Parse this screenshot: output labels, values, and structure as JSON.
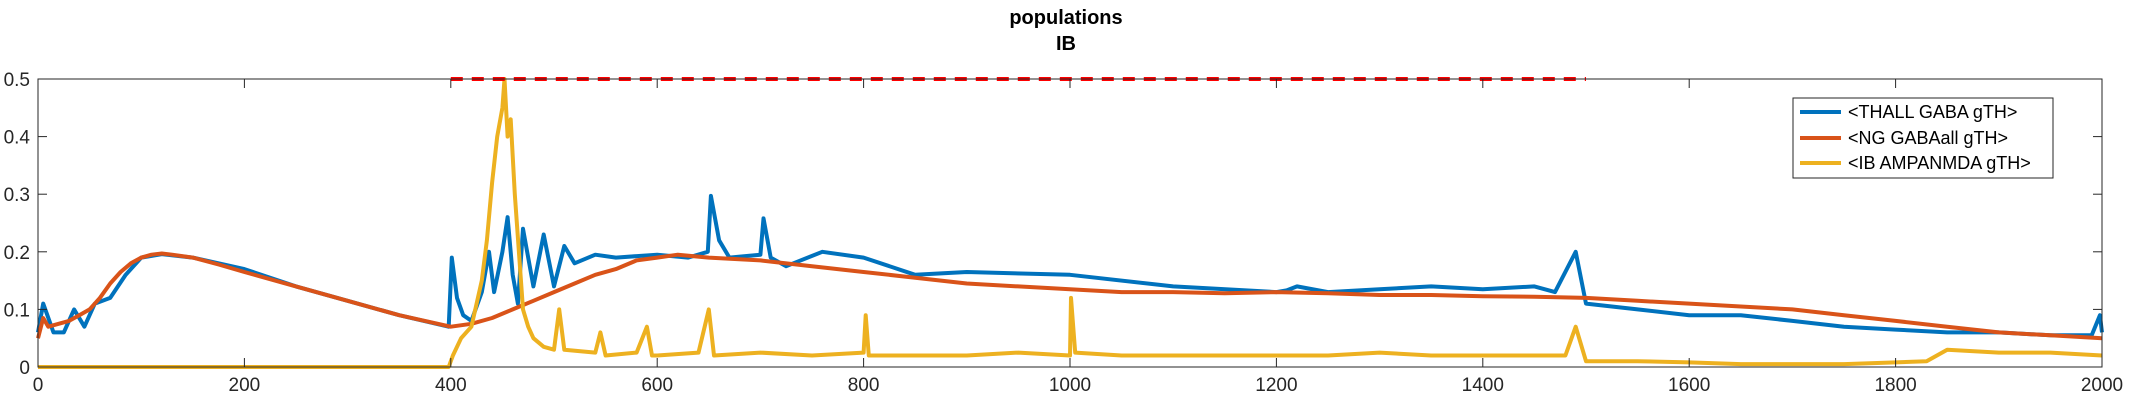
{
  "chart_data": {
    "type": "line",
    "title": "populations",
    "subtitle": "IB",
    "xlabel": "",
    "ylabel": "",
    "xlim": [
      0,
      2000
    ],
    "ylim": [
      0,
      0.5
    ],
    "xticks": [
      0,
      200,
      400,
      600,
      800,
      1000,
      1200,
      1400,
      1600,
      1800,
      2000
    ],
    "yticks": [
      0,
      0.1,
      0.2,
      0.3,
      0.4,
      0.5
    ],
    "ytick_labels": [
      "0",
      "0.1",
      "0.2",
      "0.3",
      "0.4",
      "0.5"
    ],
    "grid": false,
    "legend_position": "top-right",
    "series": [
      {
        "name": "<THALL GABA gTH>",
        "color": "#0072BD",
        "x": [
          0,
          5,
          15,
          25,
          35,
          45,
          55,
          70,
          85,
          100,
          120,
          150,
          200,
          250,
          300,
          350,
          398,
          401,
          406,
          412,
          420,
          430,
          437,
          442,
          450,
          455,
          460,
          465,
          470,
          480,
          490,
          500,
          510,
          520,
          540,
          560,
          600,
          630,
          649,
          652,
          660,
          670,
          700,
          703,
          710,
          725,
          760,
          800,
          850,
          900,
          1000,
          1100,
          1200,
          1210,
          1220,
          1250,
          1300,
          1350,
          1400,
          1450,
          1470,
          1490,
          1500,
          1550,
          1600,
          1650,
          1700,
          1750,
          1800,
          1850,
          1900,
          1950,
          1990,
          1998,
          2000
        ],
        "values": [
          0.06,
          0.11,
          0.06,
          0.06,
          0.1,
          0.07,
          0.11,
          0.12,
          0.16,
          0.19,
          0.196,
          0.19,
          0.17,
          0.14,
          0.115,
          0.09,
          0.07,
          0.19,
          0.12,
          0.09,
          0.08,
          0.13,
          0.2,
          0.13,
          0.2,
          0.26,
          0.16,
          0.11,
          0.24,
          0.14,
          0.23,
          0.14,
          0.21,
          0.18,
          0.195,
          0.19,
          0.195,
          0.19,
          0.2,
          0.297,
          0.22,
          0.19,
          0.195,
          0.258,
          0.19,
          0.175,
          0.2,
          0.19,
          0.16,
          0.165,
          0.16,
          0.14,
          0.13,
          0.133,
          0.14,
          0.13,
          0.135,
          0.14,
          0.135,
          0.14,
          0.13,
          0.2,
          0.11,
          0.1,
          0.09,
          0.09,
          0.08,
          0.07,
          0.065,
          0.06,
          0.06,
          0.055,
          0.055,
          0.09,
          0.06
        ]
      },
      {
        "name": "<NG GABAall gTH>",
        "color": "#D95319",
        "x": [
          0,
          5,
          10,
          20,
          30,
          40,
          50,
          60,
          70,
          80,
          90,
          100,
          110,
          120,
          130,
          150,
          175,
          200,
          250,
          300,
          350,
          400,
          420,
          440,
          460,
          480,
          500,
          520,
          540,
          560,
          580,
          600,
          620,
          650,
          700,
          750,
          800,
          850,
          900,
          950,
          1000,
          1050,
          1100,
          1150,
          1200,
          1250,
          1300,
          1350,
          1400,
          1450,
          1500,
          1550,
          1600,
          1650,
          1700,
          1750,
          1800,
          1850,
          1900,
          1950,
          2000
        ],
        "values": [
          0.05,
          0.085,
          0.07,
          0.075,
          0.08,
          0.09,
          0.1,
          0.12,
          0.145,
          0.165,
          0.18,
          0.19,
          0.195,
          0.197,
          0.195,
          0.19,
          0.178,
          0.165,
          0.14,
          0.115,
          0.09,
          0.07,
          0.075,
          0.085,
          0.1,
          0.115,
          0.13,
          0.145,
          0.16,
          0.17,
          0.185,
          0.19,
          0.195,
          0.19,
          0.185,
          0.175,
          0.165,
          0.155,
          0.145,
          0.14,
          0.135,
          0.13,
          0.13,
          0.128,
          0.13,
          0.128,
          0.125,
          0.125,
          0.123,
          0.122,
          0.12,
          0.115,
          0.11,
          0.105,
          0.1,
          0.09,
          0.08,
          0.07,
          0.06,
          0.055,
          0.05
        ]
      },
      {
        "name": "<IB AMPANMDA gTH>",
        "color": "#EDB120",
        "x": [
          0,
          398,
          402,
          410,
          420,
          430,
          435,
          440,
          445,
          450,
          452,
          455,
          458,
          462,
          466,
          470,
          475,
          480,
          490,
          500,
          505,
          510,
          540,
          545,
          550,
          580,
          590,
          595,
          600,
          640,
          650,
          655,
          700,
          750,
          800,
          802,
          805,
          850,
          900,
          950,
          1000,
          1001,
          1005,
          1050,
          1100,
          1150,
          1200,
          1250,
          1300,
          1350,
          1400,
          1450,
          1480,
          1490,
          1500,
          1550,
          1600,
          1650,
          1700,
          1750,
          1800,
          1830,
          1850,
          1900,
          1950,
          2000
        ],
        "values": [
          0,
          0,
          0.02,
          0.05,
          0.07,
          0.15,
          0.22,
          0.32,
          0.4,
          0.45,
          0.5,
          0.4,
          0.43,
          0.3,
          0.2,
          0.1,
          0.07,
          0.05,
          0.035,
          0.03,
          0.1,
          0.03,
          0.025,
          0.06,
          0.02,
          0.025,
          0.07,
          0.02,
          0.02,
          0.025,
          0.1,
          0.02,
          0.025,
          0.02,
          0.025,
          0.09,
          0.02,
          0.02,
          0.02,
          0.025,
          0.02,
          0.12,
          0.025,
          0.02,
          0.02,
          0.02,
          0.02,
          0.02,
          0.025,
          0.02,
          0.02,
          0.02,
          0.02,
          0.07,
          0.01,
          0.01,
          0.008,
          0.005,
          0.005,
          0.005,
          0.008,
          0.01,
          0.03,
          0.025,
          0.025,
          0.02
        ]
      }
    ],
    "annotations": [
      {
        "type": "dashed-hline",
        "y": 0.5,
        "x_start": 400,
        "x_end": 1500,
        "color": "#FF0000"
      }
    ]
  }
}
